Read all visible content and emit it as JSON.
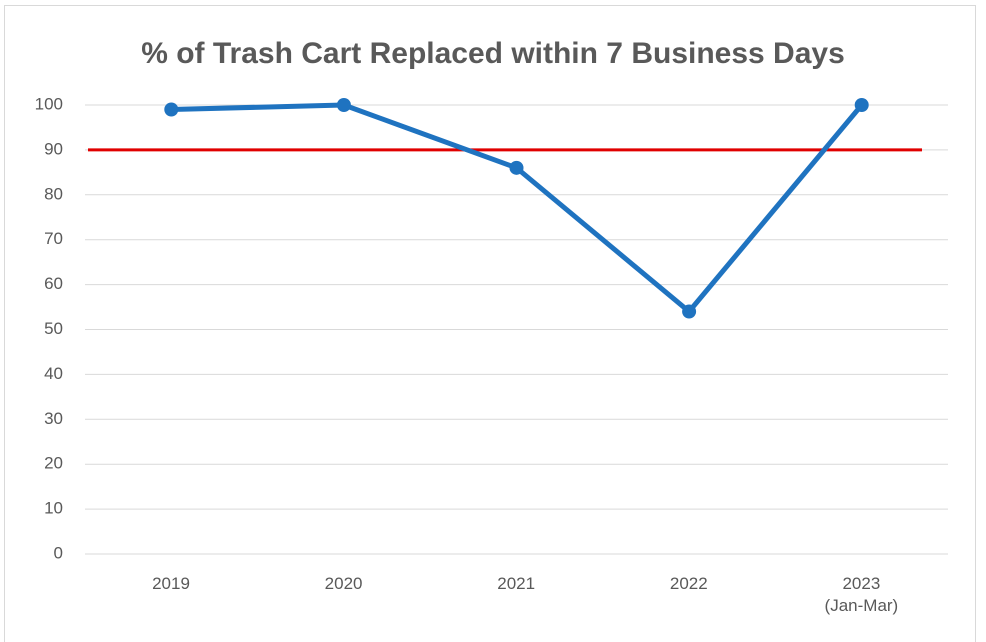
{
  "chart_data": {
    "type": "line",
    "title": "% of Trash Cart Replaced within 7 Business Days",
    "categories": [
      "2019",
      "2020",
      "2021",
      "2022",
      "2023\n(Jan-Mar)"
    ],
    "values": [
      99,
      100,
      86,
      54,
      100
    ],
    "color": "#1f73c0",
    "reference_line": {
      "value": 90,
      "color": "#e00000"
    },
    "ylim": [
      0,
      100
    ],
    "yticks": [
      0,
      10,
      20,
      30,
      40,
      50,
      60,
      70,
      80,
      90,
      100
    ],
    "grid": true
  }
}
